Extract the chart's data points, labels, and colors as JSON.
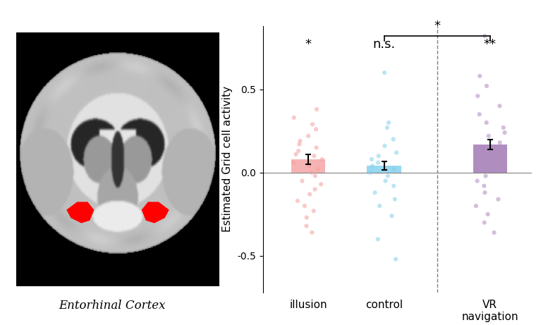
{
  "bar_means": [
    0.08,
    0.04,
    0.17
  ],
  "bar_errors": [
    0.03,
    0.025,
    0.03
  ],
  "bar_colors": [
    "#F4A0A0",
    "#7ECFED",
    "#9B72B0"
  ],
  "dot_colors": [
    "#F4A0A0",
    "#85CEEA",
    "#B08AC0"
  ],
  "categories": [
    "illusion",
    "control",
    "VR\nnavigation"
  ],
  "ylabel": "Estimated Grid cell activity",
  "ylim": [
    -0.72,
    0.88
  ],
  "yticks": [
    -0.5,
    0.0,
    0.5
  ],
  "significance_labels": [
    "*",
    "n.s.",
    "**"
  ],
  "bracket_label": "*",
  "bar_width": 0.45,
  "illusion_dots": [
    0.38,
    0.33,
    0.29,
    0.26,
    0.22,
    0.19,
    0.17,
    0.15,
    0.13,
    0.11,
    0.1,
    0.08,
    0.06,
    0.04,
    0.02,
    0.0,
    -0.02,
    -0.05,
    -0.07,
    -0.1,
    -0.13,
    -0.17,
    -0.2,
    -0.23,
    -0.27,
    -0.32,
    -0.36
  ],
  "control_dots": [
    0.6,
    0.3,
    0.27,
    0.2,
    0.16,
    0.12,
    0.1,
    0.08,
    0.06,
    0.04,
    0.02,
    0.0,
    -0.02,
    -0.05,
    -0.08,
    -0.12,
    -0.16,
    -0.2,
    -0.26,
    -0.4,
    -0.52
  ],
  "vr_dots": [
    0.82,
    0.58,
    0.52,
    0.46,
    0.4,
    0.35,
    0.3,
    0.27,
    0.24,
    0.22,
    0.18,
    0.15,
    0.12,
    0.1,
    0.08,
    0.05,
    0.02,
    -0.02,
    -0.05,
    -0.08,
    -0.12,
    -0.16,
    -0.2,
    -0.25,
    -0.3,
    -0.36
  ],
  "background_color": "#FFFFFF",
  "entorhinal_label": "Entorhinal Cortex"
}
